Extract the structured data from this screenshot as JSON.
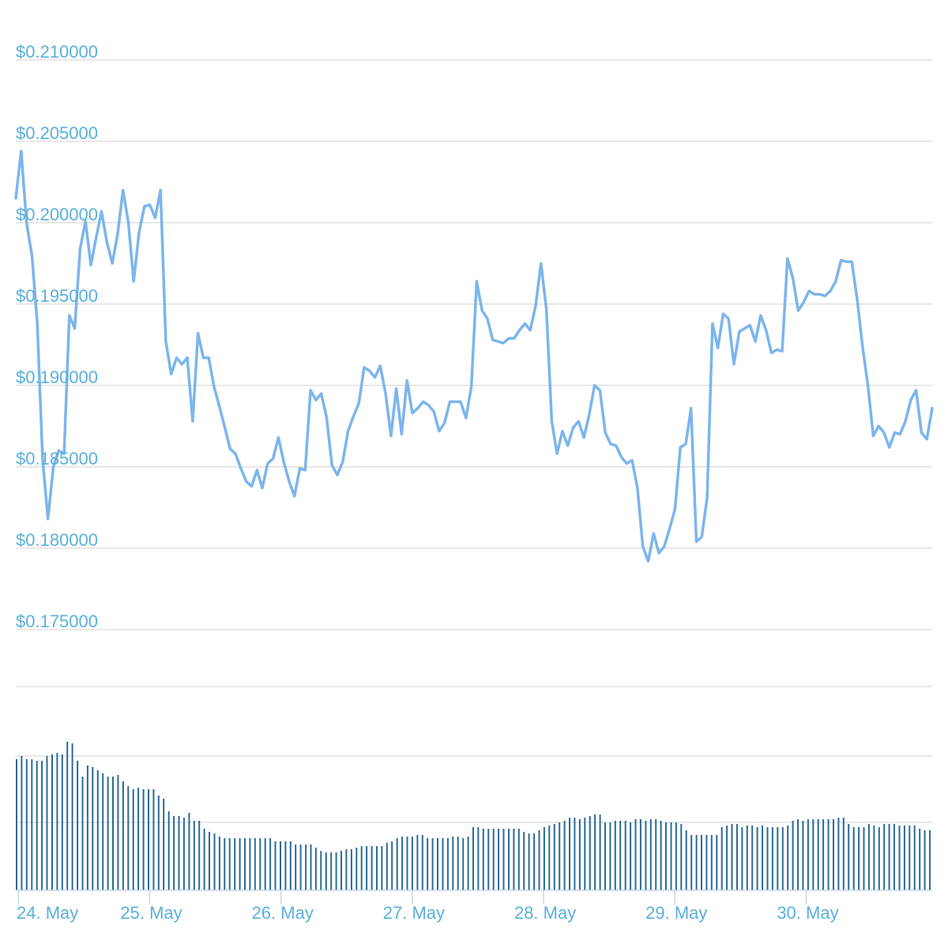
{
  "chart_data": [
    {
      "type": "line",
      "title": "",
      "xlabel": "",
      "ylabel": "",
      "grid": true,
      "line_color": "#7cb5ec",
      "ylim": [
        0.1715,
        0.2115
      ],
      "y_ticks": [
        "$0.210000",
        "$0.205000",
        "$0.200000",
        "$0.195000",
        "$0.190000",
        "$0.185000",
        "$0.180000",
        "$0.175000"
      ],
      "y_tick_values": [
        0.21,
        0.205,
        0.2,
        0.195,
        0.19,
        0.185,
        0.18,
        0.175
      ],
      "x_start": "24. May",
      "x_range_days": [
        -0.02,
        6.96
      ],
      "series": [
        {
          "values": [
            0.2015,
            0.2044,
            0.2,
            0.198,
            0.1939,
            0.1855,
            0.1818,
            0.185,
            0.186,
            0.1858,
            0.1943,
            0.1935,
            0.1984,
            0.2001,
            0.1974,
            0.1991,
            0.2007,
            0.1988,
            0.1975,
            0.1993,
            0.202,
            0.2,
            0.1964,
            0.1994,
            0.201,
            0.2011,
            0.2003,
            0.202,
            0.1927,
            0.1907,
            0.1917,
            0.1913,
            0.1917,
            0.1878,
            0.1932,
            0.1917,
            0.1917,
            0.1899,
            0.1887,
            0.1874,
            0.1861,
            0.1858,
            0.1849,
            0.1841,
            0.1838,
            0.1848,
            0.1837,
            0.1852,
            0.1855,
            0.1868,
            0.1853,
            0.1841,
            0.1832,
            0.1849,
            0.1848,
            0.1897,
            0.1891,
            0.1895,
            0.188,
            0.1851,
            0.1845,
            0.1853,
            0.1872,
            0.1881,
            0.1889,
            0.1911,
            0.1909,
            0.1905,
            0.1912,
            0.1895,
            0.1869,
            0.1898,
            0.187,
            0.1903,
            0.1883,
            0.1886,
            0.189,
            0.1888,
            0.1884,
            0.1872,
            0.1877,
            0.189,
            0.189,
            0.189,
            0.188,
            0.1899,
            0.1964,
            0.1946,
            0.1941,
            0.1928,
            0.1927,
            0.1926,
            0.1929,
            0.1929,
            0.1934,
            0.1938,
            0.1934,
            0.1949,
            0.1975,
            0.1947,
            0.1878,
            0.1858,
            0.1872,
            0.1863,
            0.1874,
            0.1878,
            0.1868,
            0.1882,
            0.19,
            0.1897,
            0.1871,
            0.1864,
            0.1863,
            0.1856,
            0.1852,
            0.1854,
            0.1837,
            0.1801,
            0.1792,
            0.1809,
            0.1797,
            0.1801,
            0.1812,
            0.1824,
            0.1862,
            0.1864,
            0.1886,
            0.1804,
            0.1807,
            0.1831,
            0.1938,
            0.1923,
            0.1944,
            0.1941,
            0.1913,
            0.1933,
            0.1935,
            0.1937,
            0.1927,
            0.1943,
            0.1934,
            0.192,
            0.1922,
            0.1921,
            0.1978,
            0.1966,
            0.1946,
            0.1951,
            0.1958,
            0.1956,
            0.1956,
            0.1955,
            0.1958,
            0.1964,
            0.1977,
            0.1976,
            0.1976,
            0.1953,
            0.1924,
            0.19,
            0.1869,
            0.1875,
            0.1871,
            0.1862,
            0.1871,
            0.187,
            0.1878,
            0.1891,
            0.1897,
            0.1871,
            0.1867,
            0.1886
          ]
        }
      ]
    },
    {
      "type": "bar",
      "title": "",
      "bar_color": "#2b6a96",
      "grid": true,
      "volume_relative": [
        0.83,
        0.85,
        0.83,
        0.83,
        0.82,
        0.82,
        0.85,
        0.86,
        0.87,
        0.86,
        0.94,
        0.93,
        0.82,
        0.72,
        0.79,
        0.78,
        0.76,
        0.74,
        0.72,
        0.72,
        0.73,
        0.69,
        0.66,
        0.64,
        0.65,
        0.64,
        0.64,
        0.64,
        0.6,
        0.58,
        0.5,
        0.47,
        0.47,
        0.46,
        0.49,
        0.44,
        0.44,
        0.39,
        0.37,
        0.36,
        0.34,
        0.33,
        0.33,
        0.33,
        0.33,
        0.33,
        0.33,
        0.33,
        0.33,
        0.33,
        0.33,
        0.31,
        0.31,
        0.31,
        0.31,
        0.29,
        0.29,
        0.29,
        0.29,
        0.27,
        0.25,
        0.24,
        0.24,
        0.24,
        0.25,
        0.26,
        0.26,
        0.27,
        0.28,
        0.28,
        0.28,
        0.28,
        0.28,
        0.3,
        0.31,
        0.33,
        0.34,
        0.34,
        0.34,
        0.35,
        0.35,
        0.33,
        0.33,
        0.33,
        0.33,
        0.33,
        0.34,
        0.34,
        0.33,
        0.34,
        0.4,
        0.4,
        0.39,
        0.39,
        0.39,
        0.39,
        0.39,
        0.39,
        0.39,
        0.39,
        0.37,
        0.36,
        0.36,
        0.38,
        0.4,
        0.41,
        0.42,
        0.43,
        0.44,
        0.46,
        0.46,
        0.45,
        0.46,
        0.47,
        0.48,
        0.48,
        0.43,
        0.43,
        0.44,
        0.44,
        0.44,
        0.43,
        0.45,
        0.45,
        0.44,
        0.45,
        0.45,
        0.44,
        0.43,
        0.43,
        0.43,
        0.42,
        0.38,
        0.35,
        0.35,
        0.35,
        0.35,
        0.35,
        0.35,
        0.4,
        0.41,
        0.42,
        0.42,
        0.4,
        0.41,
        0.41,
        0.4,
        0.41,
        0.4,
        0.4,
        0.4,
        0.4,
        0.41,
        0.44,
        0.45,
        0.44,
        0.45,
        0.45,
        0.45,
        0.45,
        0.45,
        0.45,
        0.46,
        0.46,
        0.42,
        0.4,
        0.4,
        0.4,
        0.42,
        0.41,
        0.4,
        0.42,
        0.42,
        0.42,
        0.41,
        0.41,
        0.41,
        0.41,
        0.39,
        0.38,
        0.38
      ]
    }
  ],
  "x_axis": {
    "tick_labels": [
      "24. May",
      "25. May",
      "26. May",
      "27. May",
      "28. May",
      "29. May",
      "30. May"
    ],
    "tick_values_days": [
      0,
      1,
      2,
      3,
      4,
      5,
      6
    ]
  }
}
